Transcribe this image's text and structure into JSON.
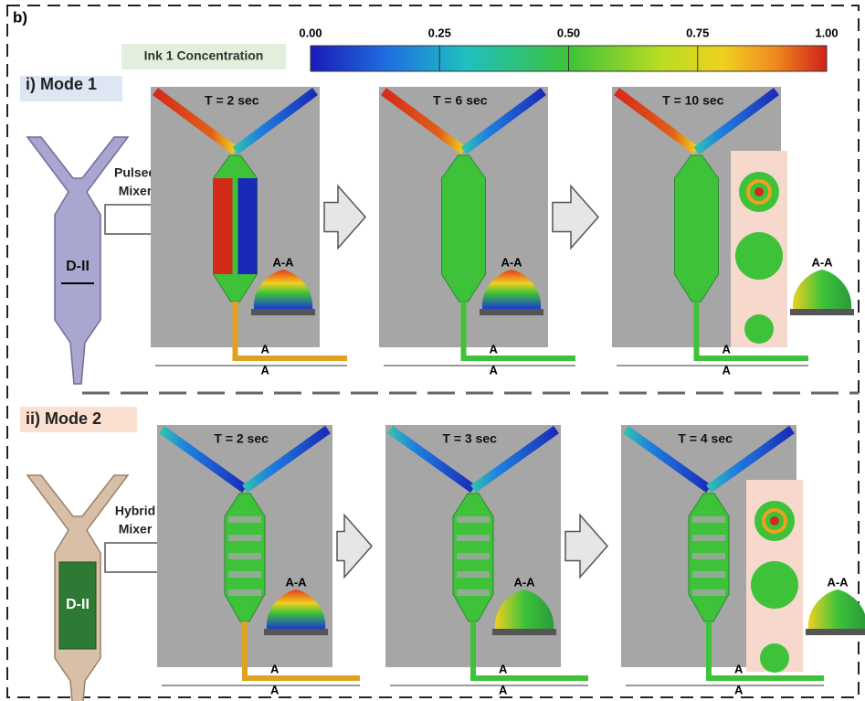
{
  "label": "b)",
  "colorbar": {
    "title": "Ink 1 Concentration",
    "range": [
      0,
      1
    ],
    "ticks": [
      {
        "value": 0,
        "label": "0.00"
      },
      {
        "value": 0.25,
        "label": "0.25"
      },
      {
        "value": 0.5,
        "label": "0.50"
      },
      {
        "value": 0.75,
        "label": "0.75"
      },
      {
        "value": 1,
        "label": "1.00"
      }
    ]
  },
  "modes": [
    {
      "title": "i) Mode 1",
      "device_label": "D-II",
      "mixer_label": [
        "Pulsed",
        "Mixer"
      ],
      "panels": [
        {
          "time": "T = 2 sec",
          "section": "A-A",
          "markers": [
            "A",
            "A"
          ]
        },
        {
          "time": "T = 6 sec",
          "section": "A-A",
          "markers": [
            "A",
            "A"
          ]
        },
        {
          "time": "T = 10 sec",
          "section": "A-A",
          "markers": [
            "A",
            "A"
          ]
        }
      ]
    },
    {
      "title": "ii) Mode 2",
      "device_label": "D-II",
      "mixer_label": [
        "Hybrid",
        "Mixer"
      ],
      "panels": [
        {
          "time": "T = 2 sec",
          "section": "A-A",
          "markers": [
            "A",
            "A"
          ]
        },
        {
          "time": "T = 3 sec",
          "section": "A-A",
          "markers": [
            "A",
            "A"
          ]
        },
        {
          "time": "T = 4 sec",
          "section": "A-A",
          "markers": [
            "A",
            "A"
          ]
        }
      ]
    }
  ]
}
